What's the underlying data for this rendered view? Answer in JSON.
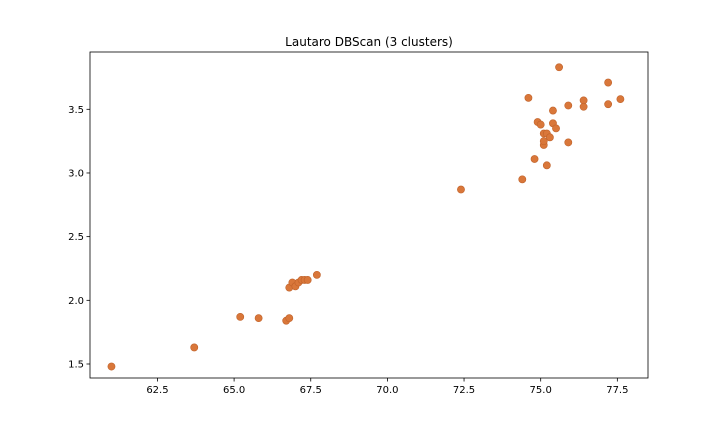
{
  "chart_data": {
    "type": "scatter",
    "title": "Lautaro DBScan (3 clusters)",
    "xlabel": "",
    "ylabel": "",
    "xlim": [
      60.3,
      78.5
    ],
    "ylim": [
      1.39,
      3.95
    ],
    "xticks": [
      62.5,
      65.0,
      67.5,
      70.0,
      72.5,
      75.0,
      77.5
    ],
    "xtick_labels": [
      "62.5",
      "65.0",
      "67.5",
      "70.0",
      "72.5",
      "75.0",
      "77.5"
    ],
    "yticks": [
      1.5,
      2.0,
      2.5,
      3.0,
      3.5
    ],
    "ytick_labels": [
      "1.5",
      "2.0",
      "2.5",
      "3.0",
      "3.5"
    ],
    "grid": false,
    "marker_color": "#d9773a",
    "marker_edge_color": "#c0622a",
    "points": [
      [
        61.0,
        1.48
      ],
      [
        63.7,
        1.63
      ],
      [
        65.2,
        1.87
      ],
      [
        65.8,
        1.86
      ],
      [
        66.7,
        1.84
      ],
      [
        66.8,
        1.86
      ],
      [
        66.8,
        2.1
      ],
      [
        66.9,
        2.14
      ],
      [
        67.0,
        2.11
      ],
      [
        67.1,
        2.14
      ],
      [
        67.2,
        2.16
      ],
      [
        67.3,
        2.16
      ],
      [
        67.7,
        2.2
      ],
      [
        67.4,
        2.16
      ],
      [
        72.4,
        2.87
      ],
      [
        74.4,
        2.95
      ],
      [
        74.6,
        3.59
      ],
      [
        74.8,
        3.11
      ],
      [
        74.9,
        3.4
      ],
      [
        75.0,
        3.38
      ],
      [
        75.1,
        3.31
      ],
      [
        75.1,
        3.22
      ],
      [
        75.1,
        3.25
      ],
      [
        75.2,
        3.31
      ],
      [
        75.3,
        3.28
      ],
      [
        75.4,
        3.39
      ],
      [
        75.4,
        3.49
      ],
      [
        75.5,
        3.35
      ],
      [
        75.2,
        3.06
      ],
      [
        75.6,
        3.83
      ],
      [
        75.9,
        3.53
      ],
      [
        75.9,
        3.24
      ],
      [
        76.4,
        3.57
      ],
      [
        76.4,
        3.52
      ],
      [
        77.2,
        3.71
      ],
      [
        77.2,
        3.54
      ],
      [
        77.6,
        3.58
      ]
    ]
  }
}
